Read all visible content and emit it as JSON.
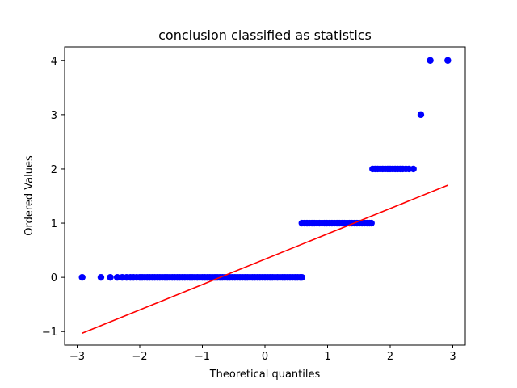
{
  "chart_data": {
    "type": "scatter",
    "title": "conclusion classified as statistics",
    "xlabel": "Theoretical quantiles",
    "ylabel": "Ordered Values",
    "xlim": [
      -3.2,
      3.2
    ],
    "ylim": [
      -1.25,
      4.25
    ],
    "xticks": [
      -3,
      -2,
      -1,
      0,
      1,
      2,
      3
    ],
    "xtick_labels": [
      "−3",
      "−2",
      "−1",
      "0",
      "1",
      "2",
      "3"
    ],
    "yticks": [
      -1,
      0,
      1,
      2,
      3,
      4
    ],
    "ytick_labels": [
      "−1",
      "0",
      "1",
      "2",
      "3",
      "4"
    ],
    "grid": false,
    "point_color": "#0000ff",
    "line_color": "#ff0000",
    "point_groups": [
      {
        "y": 0,
        "x": [
          -2.92,
          -2.62,
          -2.47,
          -2.36,
          -2.28,
          -2.21,
          -2.15,
          -2.1,
          -2.05,
          -2.0,
          -1.96,
          -1.92,
          -1.88,
          -1.84,
          -1.8,
          -1.76,
          -1.72,
          -1.68,
          -1.64,
          -1.6,
          -1.56,
          -1.52,
          -1.48,
          -1.44,
          -1.4,
          -1.36,
          -1.32,
          -1.28,
          -1.24,
          -1.2,
          -1.16,
          -1.12,
          -1.08,
          -1.04,
          -1.0,
          -0.96,
          -0.92,
          -0.88,
          -0.84,
          -0.8,
          -0.76,
          -0.72,
          -0.68,
          -0.64,
          -0.6,
          -0.56,
          -0.52,
          -0.48,
          -0.44,
          -0.4,
          -0.36,
          -0.32,
          -0.28,
          -0.24,
          -0.2,
          -0.16,
          -0.12,
          -0.08,
          -0.04,
          0.0,
          0.04,
          0.08,
          0.12,
          0.16,
          0.2,
          0.24,
          0.28,
          0.32,
          0.36,
          0.4,
          0.44,
          0.48,
          0.52,
          0.56,
          0.59
        ]
      },
      {
        "y": 1,
        "x": [
          0.59,
          0.63,
          0.67,
          0.71,
          0.75,
          0.79,
          0.83,
          0.87,
          0.91,
          0.95,
          0.99,
          1.03,
          1.07,
          1.11,
          1.15,
          1.19,
          1.23,
          1.27,
          1.31,
          1.35,
          1.39,
          1.43,
          1.47,
          1.51,
          1.55,
          1.59,
          1.63,
          1.67,
          1.7
        ]
      },
      {
        "y": 2,
        "x": [
          1.72,
          1.76,
          1.8,
          1.84,
          1.88,
          1.92,
          1.96,
          2.0,
          2.04,
          2.08,
          2.12,
          2.16,
          2.2,
          2.25,
          2.3,
          2.37
        ]
      },
      {
        "y": 3,
        "x": [
          2.49
        ]
      },
      {
        "y": 4,
        "x": [
          2.64,
          2.92
        ]
      }
    ],
    "fit_line": {
      "x": [
        -2.92,
        2.92
      ],
      "y": [
        -1.03,
        1.7
      ]
    }
  }
}
